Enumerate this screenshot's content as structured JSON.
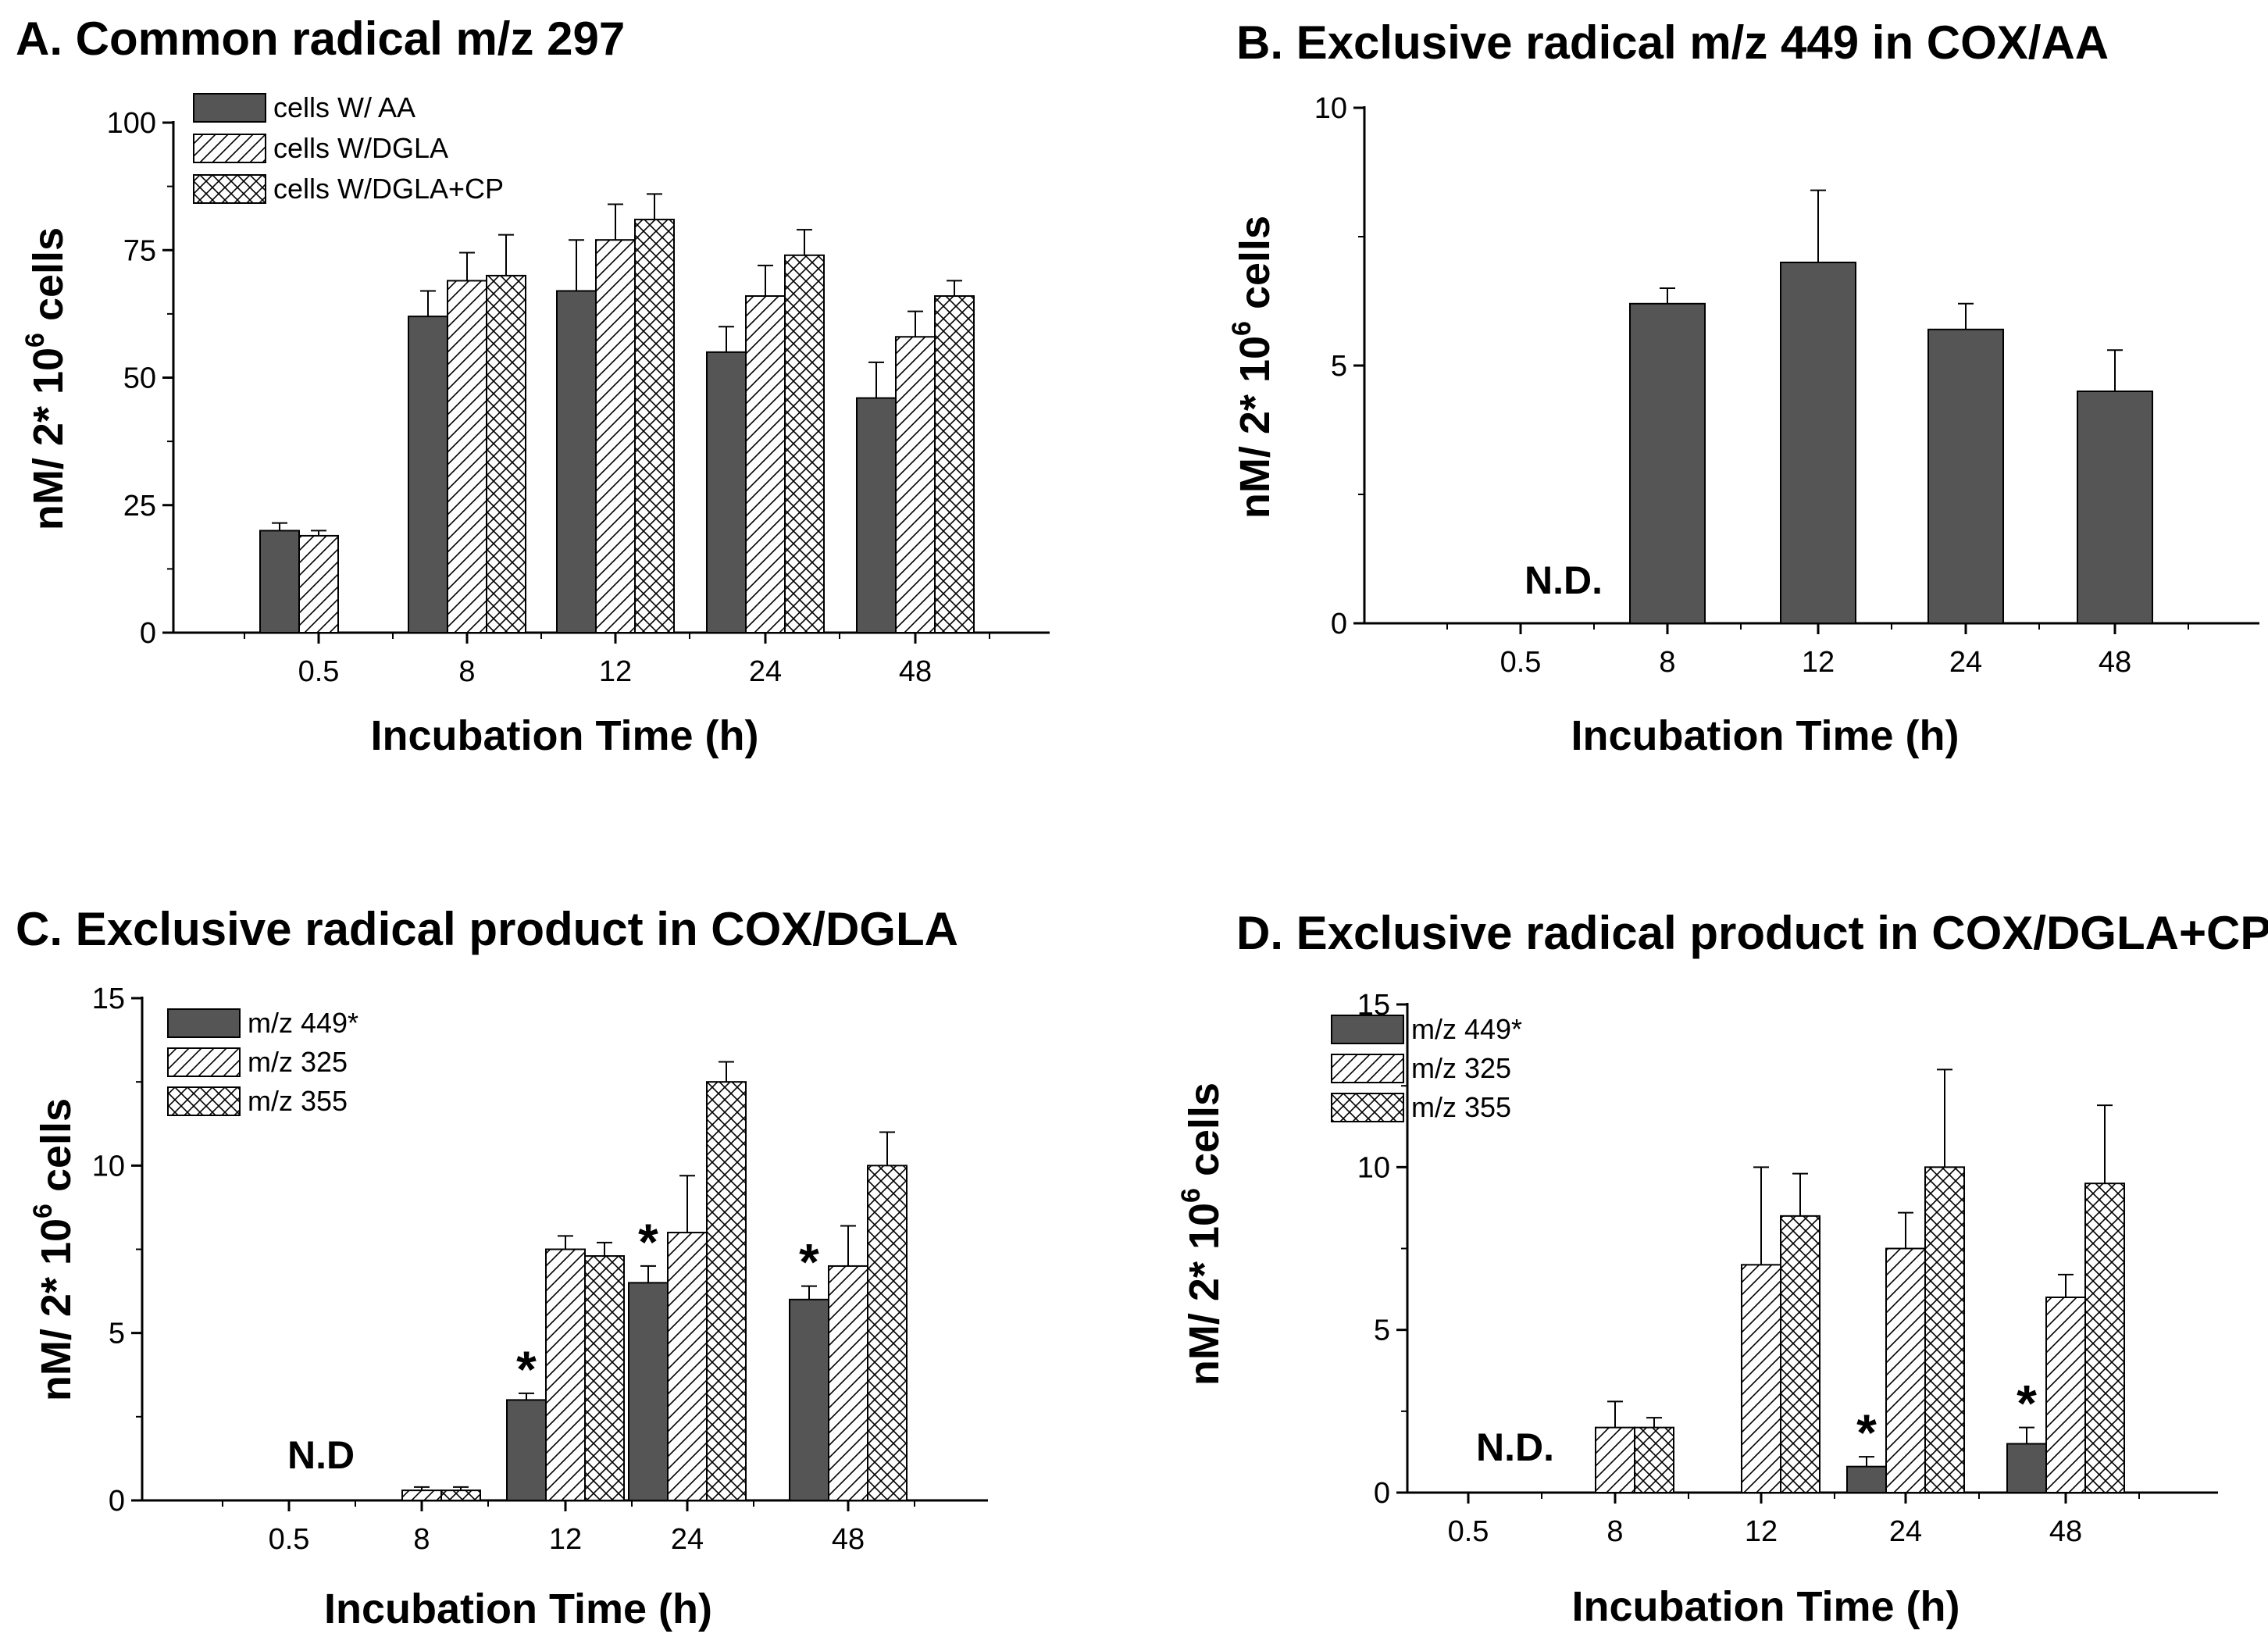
{
  "colors": {
    "solid_fill": "#555555",
    "stroke": "#000000",
    "background": "#ffffff"
  },
  "chart_data": [
    {
      "panel": "A",
      "type": "bar",
      "title_prefix": "A.",
      "title": "Common radical m/z 297",
      "categories": [
        "0.5",
        "8",
        "12",
        "24",
        "48"
      ],
      "series": [
        {
          "name": "cells W/ AA",
          "pattern": "solid",
          "values": [
            20,
            62,
            67,
            55,
            46
          ],
          "errors": [
            1.5,
            5,
            10,
            5,
            7
          ]
        },
        {
          "name": "cells W/DGLA",
          "pattern": "hatch",
          "values": [
            19,
            69,
            77,
            66,
            58
          ],
          "errors": [
            1,
            5.5,
            7,
            6,
            5
          ]
        },
        {
          "name": "cells W/DGLA+CP",
          "pattern": "cross",
          "values": [
            null,
            70,
            81,
            74,
            66
          ],
          "errors": [
            null,
            8,
            5,
            5,
            3
          ]
        }
      ],
      "ylim": [
        0,
        100
      ],
      "yticks": [
        "0",
        "25",
        "50",
        "75",
        "100"
      ],
      "xlabel": "Incubation Time (h)",
      "ylabel_parts": [
        "nM/ 2* 10",
        "6",
        " cells"
      ],
      "legend": "top-left",
      "note": null,
      "stars": []
    },
    {
      "panel": "B",
      "type": "bar",
      "title_prefix": "B.",
      "title": "Exclusive radical m/z 449 in COX/AA",
      "categories": [
        "0.5",
        "8",
        "12",
        "24",
        "48"
      ],
      "series": [
        {
          "name": "m/z 449",
          "pattern": "solid",
          "values": [
            null,
            6.2,
            7.0,
            5.7,
            4.5
          ],
          "errors": [
            null,
            0.3,
            1.4,
            0.5,
            0.8
          ]
        }
      ],
      "ylim": [
        0,
        10
      ],
      "yticks": [
        "0",
        "5",
        "10"
      ],
      "xlabel": "Incubation Time (h)",
      "ylabel_parts": [
        "nM/ 2* 10",
        "6",
        " cells"
      ],
      "legend": "none",
      "note": "N.D.",
      "stars": []
    },
    {
      "panel": "C",
      "type": "bar",
      "title_prefix": "C.",
      "title": "Exclusive radical product in COX/DGLA",
      "categories": [
        "0.5",
        "8",
        "12",
        "24",
        "48"
      ],
      "series": [
        {
          "name": "m/z 449*",
          "pattern": "solid",
          "values": [
            null,
            null,
            3.0,
            6.5,
            6.0
          ],
          "errors": [
            null,
            null,
            0.2,
            0.5,
            0.4
          ]
        },
        {
          "name": "m/z 325",
          "pattern": "hatch",
          "values": [
            null,
            0.3,
            7.5,
            8.0,
            7.0
          ],
          "errors": [
            null,
            0.1,
            0.4,
            1.7,
            1.2
          ]
        },
        {
          "name": "m/z 355",
          "pattern": "cross",
          "values": [
            null,
            0.3,
            7.3,
            12.5,
            10.0
          ],
          "errors": [
            null,
            0.1,
            0.4,
            0.6,
            1.0
          ]
        }
      ],
      "ylim": [
        0,
        15
      ],
      "yticks": [
        "0",
        "5",
        "10",
        "15"
      ],
      "xlabel": "Incubation Time (h)",
      "ylabel_parts": [
        "nM/ 2* 10",
        "6",
        " cells"
      ],
      "legend": "top-left",
      "note": "N.D",
      "stars": [
        2,
        3,
        4
      ]
    },
    {
      "panel": "D",
      "type": "bar",
      "title_prefix": "D.",
      "title": "Exclusive radical product in COX/DGLA+CP",
      "categories": [
        "0.5",
        "8",
        "12",
        "24",
        "48"
      ],
      "series": [
        {
          "name": "m/z 449*",
          "pattern": "solid",
          "values": [
            null,
            null,
            null,
            0.8,
            1.5
          ],
          "errors": [
            null,
            null,
            null,
            0.3,
            0.5
          ]
        },
        {
          "name": "m/z 325",
          "pattern": "hatch",
          "values": [
            null,
            2.0,
            7.0,
            7.5,
            6.0
          ],
          "errors": [
            null,
            0.8,
            3.0,
            1.1,
            0.7
          ]
        },
        {
          "name": "m/z 355",
          "pattern": "cross",
          "values": [
            null,
            2.0,
            8.5,
            10.0,
            9.5
          ],
          "errors": [
            null,
            0.3,
            1.3,
            3.0,
            2.4
          ]
        }
      ],
      "ylim": [
        0,
        15
      ],
      "yticks": [
        "0",
        "5",
        "10",
        "15"
      ],
      "xlabel": "Incubation Time (h)",
      "ylabel_parts": [
        "nM/ 2* 10",
        "6",
        " cells"
      ],
      "legend": "top-left",
      "note": "N.D.",
      "stars": [
        3,
        4
      ]
    }
  ]
}
